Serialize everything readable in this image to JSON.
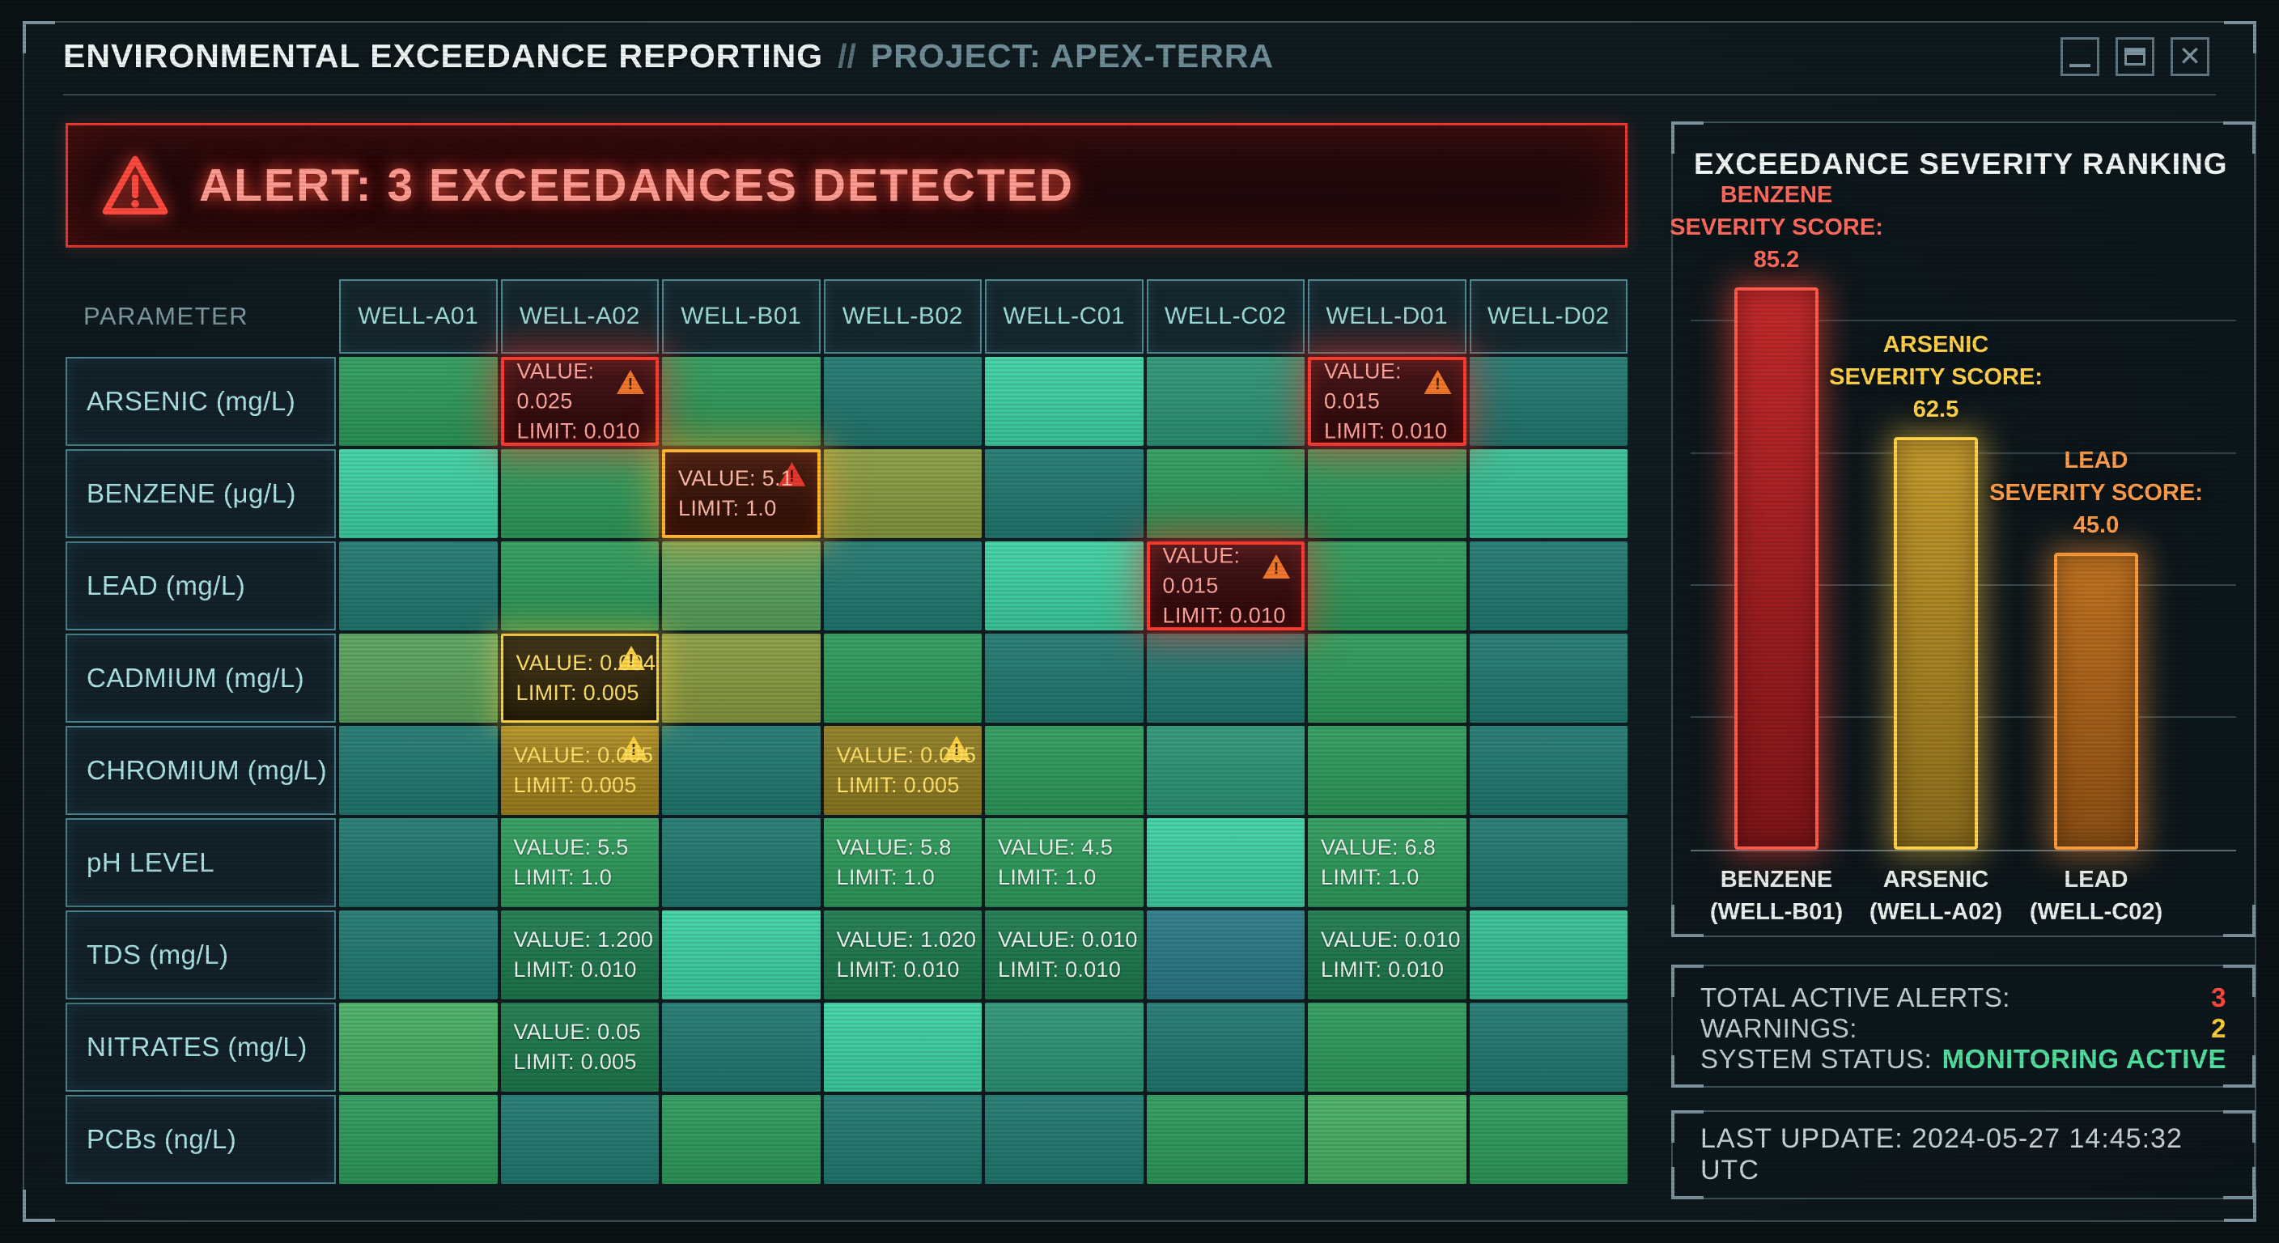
{
  "titlebar": {
    "title": "ENVIRONMENTAL EXCEEDANCE REPORTING",
    "separator": "//",
    "project": "PROJECT: APEX-TERRA",
    "controls": [
      "minimize",
      "maximize",
      "close"
    ]
  },
  "alert_banner": {
    "text": "ALERT: 3 EXCEEDANCES DETECTED",
    "accent_color": "#e8392e"
  },
  "palette": {
    "green": "#2f9c5c",
    "darkgreen": "#1e7a4e",
    "lightgreen": "#49b065",
    "moss": "#5aa35e",
    "olive": "#8a9c42",
    "amber": "#a3841f",
    "amber2": "#8f7d23",
    "teal": "#227a72",
    "jade": "#2e9677",
    "mint": "#3fd2a4",
    "seafoam": "#37c096",
    "steel": "#2c7a88"
  },
  "table": {
    "param_header": "PARAMETER",
    "columns": [
      "WELL-A01",
      "WELL-A02",
      "WELL-B01",
      "WELL-B02",
      "WELL-C01",
      "WELL-C02",
      "WELL-D01",
      "WELL-D02"
    ],
    "rows": [
      {
        "param": "ARSENIC (mg/L)",
        "cells": [
          {
            "tone": "green"
          },
          {
            "state": "alert-red",
            "value": "VALUE: 0.025",
            "limit": "LIMIT: 0.010"
          },
          {
            "tone": "green"
          },
          {
            "tone": "teal"
          },
          {
            "tone": "mint"
          },
          {
            "tone": "jade"
          },
          {
            "state": "alert-red",
            "value": "VALUE: 0.015",
            "limit": "LIMIT: 0.010"
          },
          {
            "tone": "teal"
          }
        ]
      },
      {
        "param": "BENZENE (μg/L)",
        "cells": [
          {
            "tone": "mint"
          },
          {
            "tone": "green"
          },
          {
            "state": "alert-amber",
            "value": "VALUE: 5.1",
            "limit": "LIMIT: 1.0"
          },
          {
            "tone": "olive"
          },
          {
            "tone": "teal"
          },
          {
            "tone": "green"
          },
          {
            "tone": "green"
          },
          {
            "tone": "seafoam"
          }
        ]
      },
      {
        "param": "LEAD (mg/L)",
        "cells": [
          {
            "tone": "teal"
          },
          {
            "tone": "green"
          },
          {
            "tone": "moss"
          },
          {
            "tone": "teal"
          },
          {
            "tone": "mint"
          },
          {
            "state": "alert-red",
            "value": "VALUE: 0.015",
            "limit": "LIMIT: 0.010"
          },
          {
            "tone": "green"
          },
          {
            "tone": "teal"
          }
        ]
      },
      {
        "param": "CADMIUM (mg/L)",
        "cells": [
          {
            "tone": "moss"
          },
          {
            "state": "warn-box",
            "value": "VALUE: 0.004",
            "limit": "LIMIT: 0.005"
          },
          {
            "tone": "olive"
          },
          {
            "tone": "green"
          },
          {
            "tone": "teal"
          },
          {
            "tone": "teal"
          },
          {
            "tone": "green"
          },
          {
            "tone": "teal"
          }
        ]
      },
      {
        "param": "CHROMIUM (mg/L)",
        "cells": [
          {
            "tone": "teal"
          },
          {
            "state": "warn-flat",
            "tone": "amber",
            "value": "VALUE: 0.005",
            "limit": "LIMIT: 0.005"
          },
          {
            "tone": "teal"
          },
          {
            "state": "warn-flat",
            "tone": "amber2",
            "value": "VALUE: 0.005",
            "limit": "LIMIT: 0.005"
          },
          {
            "tone": "green"
          },
          {
            "tone": "jade"
          },
          {
            "tone": "green"
          },
          {
            "tone": "teal"
          }
        ]
      },
      {
        "param": "pH LEVEL",
        "cells": [
          {
            "tone": "teal"
          },
          {
            "state": "info",
            "tone": "green",
            "value": "VALUE: 5.5",
            "limit": "LIMIT: 1.0"
          },
          {
            "tone": "teal"
          },
          {
            "state": "info",
            "tone": "green",
            "value": "VALUE: 5.8",
            "limit": "LIMIT: 1.0"
          },
          {
            "state": "info",
            "tone": "green",
            "value": "VALUE: 4.5",
            "limit": "LIMIT: 1.0"
          },
          {
            "tone": "mint"
          },
          {
            "state": "info",
            "tone": "green",
            "value": "VALUE: 6.8",
            "limit": "LIMIT: 1.0"
          },
          {
            "tone": "teal"
          }
        ]
      },
      {
        "param": "TDS (mg/L)",
        "cells": [
          {
            "tone": "teal"
          },
          {
            "state": "info",
            "tone": "darkgreen",
            "value": "VALUE: 1.200",
            "limit": "LIMIT: 0.010"
          },
          {
            "tone": "mint"
          },
          {
            "state": "info",
            "tone": "darkgreen",
            "value": "VALUE: 1.020",
            "limit": "LIMIT: 0.010"
          },
          {
            "state": "info",
            "tone": "darkgreen",
            "value": "VALUE: 0.010",
            "limit": "LIMIT: 0.010"
          },
          {
            "tone": "steel"
          },
          {
            "state": "info",
            "tone": "darkgreen",
            "value": "VALUE: 0.010",
            "limit": "LIMIT: 0.010"
          },
          {
            "tone": "seafoam"
          }
        ]
      },
      {
        "param": "NITRATES (mg/L)",
        "cells": [
          {
            "tone": "lightgreen"
          },
          {
            "state": "info",
            "tone": "darkgreen",
            "value": "VALUE: 0.05",
            "limit": "LIMIT: 0.005"
          },
          {
            "tone": "teal"
          },
          {
            "tone": "mint"
          },
          {
            "tone": "jade"
          },
          {
            "tone": "teal"
          },
          {
            "tone": "green"
          },
          {
            "tone": "teal"
          }
        ]
      },
      {
        "param": "PCBs (ng/L)",
        "cells": [
          {
            "tone": "green"
          },
          {
            "tone": "teal"
          },
          {
            "tone": "green"
          },
          {
            "tone": "teal"
          },
          {
            "tone": "teal"
          },
          {
            "tone": "green"
          },
          {
            "tone": "lightgreen"
          },
          {
            "tone": "green"
          }
        ]
      }
    ]
  },
  "severity_chart": {
    "type": "bar",
    "title": "EXCEEDANCE SEVERITY RANKING",
    "ylim": [
      0,
      100
    ],
    "gridlines": [
      20,
      40,
      60,
      80
    ],
    "bars": [
      {
        "name": "BENZENE",
        "subtitle": "SEVERITY SCORE:",
        "score": 85.2,
        "score_label": "85.2",
        "well": "(WELL-B01)",
        "label_color": "#ff6a5e",
        "border": "#ff5a4a",
        "fill_top": "#c22a2c",
        "fill_bottom": "#7e1518",
        "glow": "rgba(255,70,55,0.55)"
      },
      {
        "name": "ARSENIC",
        "subtitle": "SEVERITY SCORE:",
        "score": 62.5,
        "score_label": "62.5",
        "well": "(WELL-A02)",
        "label_color": "#ffd24a",
        "border": "#ffd24a",
        "fill_top": "#c49a2e",
        "fill_bottom": "#8a6c1c",
        "glow": "rgba(255,200,70,0.5)"
      },
      {
        "name": "LEAD",
        "subtitle": "SEVERITY SCORE:",
        "score": 45.0,
        "score_label": "45.0",
        "well": "(WELL-C02)",
        "label_color": "#ff9e4a",
        "border": "#ff9c38",
        "fill_top": "#c07322",
        "fill_bottom": "#8a4e14",
        "glow": "rgba(255,150,60,0.5)"
      }
    ]
  },
  "status_panel": {
    "rows": [
      {
        "label": "TOTAL ACTIVE ALERTS:",
        "value": "3",
        "color": "#ff4a3f"
      },
      {
        "label": "WARNINGS:",
        "value": "2",
        "color": "#ffcf3f"
      },
      {
        "label": "SYSTEM STATUS:",
        "value": "MONITORING ACTIVE",
        "color": "#52e0a0"
      }
    ]
  },
  "footer": {
    "last_update": "LAST UPDATE: 2024-05-27 14:45:32 UTC"
  }
}
